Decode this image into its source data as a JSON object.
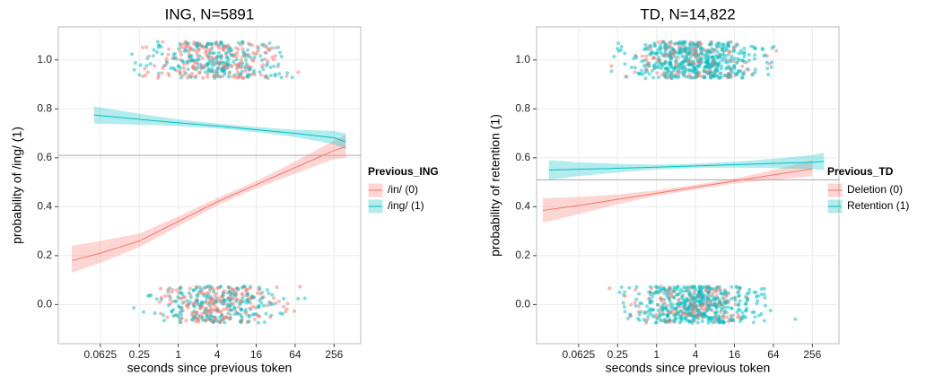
{
  "chart_data": [
    {
      "type": "line",
      "title": "ING, N=5891",
      "x_label": "seconds since previous token",
      "y_label": "probability of /ing/ (1)",
      "x_scale": "log2",
      "xlim": [
        0.014,
        660
      ],
      "xticks": [
        0.0625,
        0.25,
        1,
        4,
        16,
        64,
        256
      ],
      "ylim": [
        -0.16,
        1.135
      ],
      "yticks": [
        {
          "value": 0,
          "label": "0.0"
        },
        0.2,
        0.4,
        0.6,
        0.8,
        {
          "value": 1,
          "label": "1.0"
        }
      ],
      "hline": 0.61,
      "grid": true,
      "legend_title": "Previous_ING",
      "series": [
        {
          "name": "/in/ (0)",
          "color": "#f8766d",
          "x": [
            0.0226,
            0.0625,
            0.25,
            1,
            4,
            16,
            64,
            256,
            388
          ],
          "values": [
            0.18,
            0.21,
            0.26,
            0.34,
            0.42,
            0.49,
            0.56,
            0.63,
            0.645
          ],
          "lower": [
            0.13,
            0.17,
            0.235,
            0.32,
            0.405,
            0.475,
            0.535,
            0.595,
            0.6
          ],
          "upper": [
            0.24,
            0.26,
            0.29,
            0.36,
            0.435,
            0.505,
            0.585,
            0.67,
            0.695
          ]
        },
        {
          "name": "/ing/ (1)",
          "color": "#00bfc4",
          "x": [
            0.05,
            0.25,
            1,
            4,
            16,
            64,
            256,
            388
          ],
          "values": [
            0.775,
            0.757,
            0.743,
            0.73,
            0.715,
            0.7,
            0.682,
            0.665
          ],
          "lower": [
            0.74,
            0.735,
            0.73,
            0.72,
            0.705,
            0.685,
            0.655,
            0.635
          ],
          "upper": [
            0.81,
            0.78,
            0.757,
            0.74,
            0.726,
            0.715,
            0.71,
            0.7
          ]
        }
      ]
    },
    {
      "type": "line",
      "title": "TD, N=14,822",
      "x_label": "seconds since previous token",
      "y_label": "probability of retention (1)",
      "x_scale": "log2",
      "xlim": [
        0.014,
        660
      ],
      "xticks": [
        0.0625,
        0.25,
        1,
        4,
        16,
        64,
        256
      ],
      "ylim": [
        -0.16,
        1.135
      ],
      "yticks": [
        {
          "value": 0,
          "label": "0.0"
        },
        0.2,
        0.4,
        0.6,
        0.8,
        {
          "value": 1,
          "label": "1.0"
        }
      ],
      "hline": 0.51,
      "grid": true,
      "legend_title": "Previous_TD",
      "series": [
        {
          "name": "Deletion (0)",
          "color": "#f8766d",
          "x": [
            0.0175,
            0.0625,
            0.25,
            1,
            4,
            16,
            64,
            256
          ],
          "values": [
            0.385,
            0.405,
            0.43,
            0.455,
            0.48,
            0.505,
            0.53,
            0.555
          ],
          "lower": [
            0.335,
            0.37,
            0.41,
            0.445,
            0.47,
            0.495,
            0.51,
            0.525
          ],
          "upper": [
            0.435,
            0.44,
            0.45,
            0.467,
            0.49,
            0.515,
            0.55,
            0.59
          ]
        },
        {
          "name": "Retention (1)",
          "color": "#00bfc4",
          "x": [
            0.0218,
            0.0625,
            0.25,
            1,
            4,
            16,
            64,
            256,
            388
          ],
          "values": [
            0.55,
            0.553,
            0.557,
            0.562,
            0.567,
            0.572,
            0.577,
            0.582,
            0.585
          ],
          "lower": [
            0.51,
            0.525,
            0.54,
            0.552,
            0.558,
            0.56,
            0.558,
            0.553,
            0.55
          ],
          "upper": [
            0.59,
            0.582,
            0.575,
            0.572,
            0.576,
            0.584,
            0.596,
            0.612,
            0.62
          ]
        }
      ]
    }
  ]
}
